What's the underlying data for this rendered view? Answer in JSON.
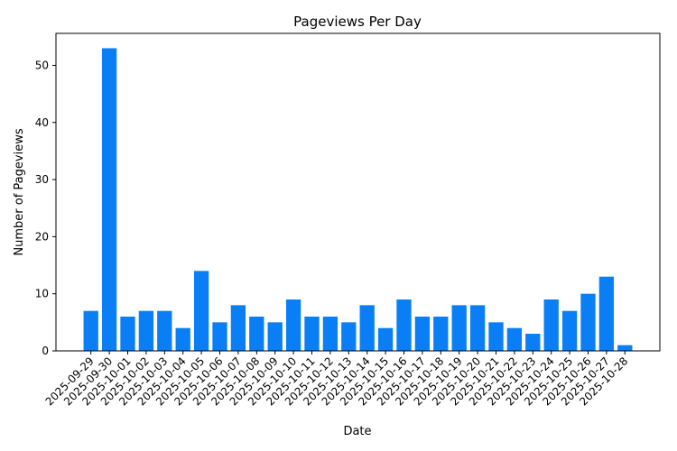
{
  "chart_data": {
    "type": "bar",
    "title": "Pageviews Per Day",
    "xlabel": "Date",
    "ylabel": "Number of Pageviews",
    "ylim": [
      0,
      55.6
    ],
    "yticks": [
      0,
      10,
      20,
      30,
      40,
      50
    ],
    "grid": false,
    "bar_color": "#0a7ff5",
    "categories": [
      "2025-09-29",
      "2025-09-30",
      "2025-10-01",
      "2025-10-02",
      "2025-10-03",
      "2025-10-04",
      "2025-10-05",
      "2025-10-06",
      "2025-10-07",
      "2025-10-08",
      "2025-10-09",
      "2025-10-10",
      "2025-10-11",
      "2025-10-12",
      "2025-10-13",
      "2025-10-14",
      "2025-10-15",
      "2025-10-16",
      "2025-10-17",
      "2025-10-18",
      "2025-10-19",
      "2025-10-20",
      "2025-10-21",
      "2025-10-22",
      "2025-10-23",
      "2025-10-24",
      "2025-10-25",
      "2025-10-26",
      "2025-10-27",
      "2025-10-28"
    ],
    "values": [
      7,
      53,
      6,
      7,
      7,
      4,
      14,
      5,
      8,
      6,
      5,
      9,
      6,
      6,
      5,
      8,
      4,
      9,
      6,
      6,
      8,
      8,
      5,
      4,
      3,
      9,
      7,
      10,
      13,
      1
    ]
  }
}
